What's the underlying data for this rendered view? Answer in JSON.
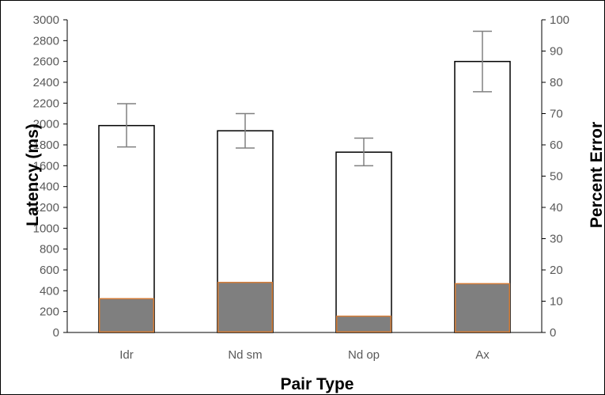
{
  "chart_data": {
    "type": "bar",
    "categories": [
      "Idr",
      "Nd sm",
      "Nd op",
      "Ax"
    ],
    "xlabel": "Pair Type",
    "ylabel": "Latency (ms)",
    "y2label": "Percent Error",
    "ylim": [
      0,
      3000
    ],
    "y2lim": [
      0,
      100
    ],
    "yticks": [
      "0",
      "200",
      "400",
      "600",
      "800",
      "1000",
      "1200",
      "1400",
      "1600",
      "1800",
      "2000",
      "2200",
      "2400",
      "2600",
      "2800",
      "3000"
    ],
    "y2ticks": [
      "0",
      "10",
      "20",
      "30",
      "40",
      "50",
      "60",
      "70",
      "80",
      "90",
      "100"
    ],
    "grid": false,
    "series": [
      {
        "axis": "left",
        "values": [
          1985,
          1935,
          1730,
          2600
        ],
        "error_low": [
          1780,
          1770,
          1600,
          2310
        ],
        "error_high": [
          2195,
          2100,
          1865,
          2890
        ],
        "fill": "#ffffff",
        "stroke": "#000000"
      },
      {
        "axis": "right",
        "values": [
          10.8,
          16.0,
          5.2,
          15.6
        ],
        "fill": "#7f7f7f",
        "stroke": "#d27b36"
      }
    ],
    "colors": {
      "error_bar": "#808080",
      "axis": "#000000",
      "tick_text": "#595959"
    }
  }
}
